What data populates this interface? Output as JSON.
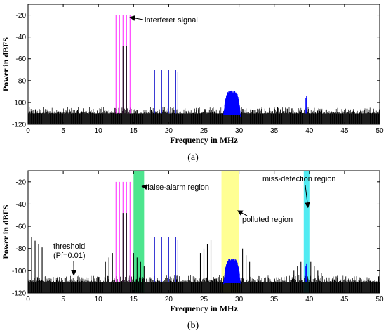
{
  "chart_data": [
    {
      "type": "line",
      "caption": "(a)",
      "xlabel": "Frequency in MHz",
      "ylabel": "Power in dBFS",
      "xlim": [
        0,
        50
      ],
      "ylim": [
        -120,
        -10
      ],
      "xticks": [
        0,
        5,
        10,
        15,
        20,
        25,
        30,
        35,
        40,
        45,
        50
      ],
      "yticks": [
        -20,
        -40,
        -60,
        -80,
        -100,
        -120
      ],
      "grid": false,
      "noise_floor": {
        "color": "#000000",
        "level_dbfs": -110,
        "peak_dbfs": -104,
        "x_range": [
          0,
          50
        ]
      },
      "series": [
        {
          "color": "#ff33ff",
          "kind": "stems",
          "points": [
            [
              12.5,
              -20
            ],
            [
              13.0,
              -20
            ],
            [
              13.5,
              -20
            ],
            [
              14.0,
              -20
            ],
            [
              14.5,
              -20
            ]
          ]
        },
        {
          "color": "#000000",
          "kind": "stems",
          "points": [
            [
              13.5,
              -48
            ],
            [
              14.0,
              -48
            ]
          ]
        },
        {
          "color": "#2a2ad0",
          "kind": "stems",
          "points": [
            [
              18.0,
              -70
            ],
            [
              19.0,
              -70
            ],
            [
              20.0,
              -70
            ],
            [
              21.0,
              -70
            ],
            [
              21.3,
              -72
            ]
          ]
        },
        {
          "color": "#0000ff",
          "kind": "band",
          "x_range": [
            27.8,
            30.2
          ],
          "peak_dbfs": -89,
          "floor_dbfs": -111
        },
        {
          "color": "#0000ff",
          "kind": "stems",
          "points": [
            [
              39.5,
              -96
            ],
            [
              39.6,
              -94
            ]
          ]
        }
      ],
      "annotations": [
        {
          "text": "interferer signal",
          "points_to": [
            14.5,
            -22
          ]
        }
      ]
    },
    {
      "type": "line",
      "caption": "(b)",
      "xlabel": "Frequency in MHz",
      "ylabel": "Power in dBFS",
      "xlim": [
        0,
        50
      ],
      "ylim": [
        -120,
        -10
      ],
      "xticks": [
        0,
        5,
        10,
        15,
        20,
        25,
        30,
        35,
        40,
        45,
        50
      ],
      "yticks": [
        -20,
        -40,
        -60,
        -80,
        -100,
        -120
      ],
      "grid": false,
      "threshold": {
        "value_dbfs": -102,
        "color": "#cc2222"
      },
      "shaded_regions": [
        {
          "name": "false-alarm region",
          "x_range": [
            15.0,
            16.5
          ],
          "color": "#2ee07a"
        },
        {
          "name": "polluted region",
          "x_range": [
            27.5,
            30.0
          ],
          "color": "#ffff80"
        },
        {
          "name": "miss-detection region",
          "x_range": [
            39.2,
            40.0
          ],
          "color": "#33e8f0"
        }
      ],
      "noise_floor": {
        "color": "#000000",
        "level_dbfs": -110,
        "peak_dbfs": -104,
        "x_range": [
          0,
          50
        ]
      },
      "series": [
        {
          "color": "#000000",
          "kind": "stems",
          "points": [
            [
              0.5,
              -70
            ],
            [
              1.0,
              -73
            ],
            [
              1.5,
              -76
            ],
            [
              2.0,
              -79
            ]
          ]
        },
        {
          "color": "#000000",
          "kind": "stems",
          "points": [
            [
              11.0,
              -92
            ],
            [
              11.5,
              -88
            ],
            [
              12.0,
              -84
            ],
            [
              15.0,
              -84
            ],
            [
              15.5,
              -88
            ],
            [
              16.0,
              -92
            ],
            [
              16.5,
              -96
            ]
          ]
        },
        {
          "color": "#ff33ff",
          "kind": "stems",
          "points": [
            [
              12.5,
              -20
            ],
            [
              13.0,
              -20
            ],
            [
              13.5,
              -20
            ],
            [
              14.0,
              -20
            ],
            [
              14.5,
              -20
            ]
          ]
        },
        {
          "color": "#000000",
          "kind": "stems",
          "points": [
            [
              13.5,
              -48
            ],
            [
              14.0,
              -48
            ]
          ]
        },
        {
          "color": "#2a2ad0",
          "kind": "stems",
          "points": [
            [
              18.0,
              -70
            ],
            [
              19.0,
              -70
            ],
            [
              20.0,
              -70
            ],
            [
              21.0,
              -70
            ],
            [
              21.3,
              -72
            ]
          ]
        },
        {
          "color": "#000000",
          "kind": "stems",
          "points": [
            [
              24.5,
              -84
            ],
            [
              25.0,
              -80
            ],
            [
              25.5,
              -76
            ],
            [
              26.0,
              -72
            ],
            [
              30.5,
              -80
            ],
            [
              31.0,
              -86
            ],
            [
              31.5,
              -92
            ]
          ]
        },
        {
          "color": "#0000ff",
          "kind": "band",
          "x_range": [
            27.8,
            30.2
          ],
          "peak_dbfs": -89,
          "floor_dbfs": -111
        },
        {
          "color": "#000000",
          "kind": "stems",
          "points": [
            [
              37.8,
              -100
            ],
            [
              38.3,
              -96
            ],
            [
              38.8,
              -92
            ],
            [
              40.2,
              -92
            ],
            [
              40.7,
              -96
            ],
            [
              41.2,
              -100
            ],
            [
              41.7,
              -102
            ]
          ]
        },
        {
          "color": "#0000ff",
          "kind": "stems",
          "points": [
            [
              39.5,
              -96
            ],
            [
              39.6,
              -94
            ]
          ]
        }
      ],
      "annotations": [
        {
          "text": "false-alarm region",
          "points_to": [
            16.2,
            -24
          ]
        },
        {
          "text": "polluted region",
          "points_to": [
            29.8,
            -46
          ]
        },
        {
          "text": "miss-detection region",
          "points_to": [
            39.8,
            -43
          ]
        },
        {
          "text": "threshold",
          "points_to": null
        },
        {
          "text": "(Pf=0.01)",
          "points_to": [
            6.5,
            -104
          ]
        }
      ]
    }
  ]
}
